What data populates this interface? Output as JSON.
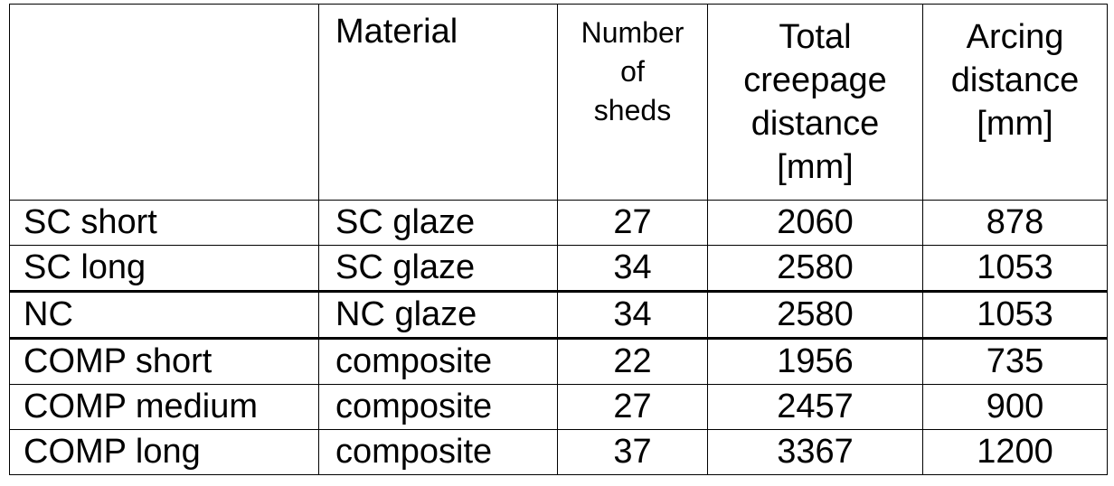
{
  "table": {
    "headers": {
      "name": "",
      "material": "Material",
      "sheds": [
        "Number",
        "of",
        "sheds"
      ],
      "creepage": [
        "Total",
        "creepage",
        "distance",
        "[mm]"
      ],
      "arcing": [
        "Arcing",
        "distance",
        "[mm]"
      ]
    },
    "rows": [
      {
        "name": "SC short",
        "material": "SC glaze",
        "sheds": "27",
        "creepage": "2060",
        "arcing": "878"
      },
      {
        "name": "SC long",
        "material": "SC glaze",
        "sheds": "34",
        "creepage": "2580",
        "arcing": "1053"
      },
      {
        "name": "NC",
        "material": "NC glaze",
        "sheds": "34",
        "creepage": "2580",
        "arcing": "1053"
      },
      {
        "name": "COMP short",
        "material": "composite",
        "sheds": "22",
        "creepage": "1956",
        "arcing": "735"
      },
      {
        "name": "COMP medium",
        "material": "composite",
        "sheds": "27",
        "creepage": "2457",
        "arcing": "900"
      },
      {
        "name": "COMP long",
        "material": "composite",
        "sheds": "37",
        "creepage": "3367",
        "arcing": "1200"
      }
    ]
  }
}
